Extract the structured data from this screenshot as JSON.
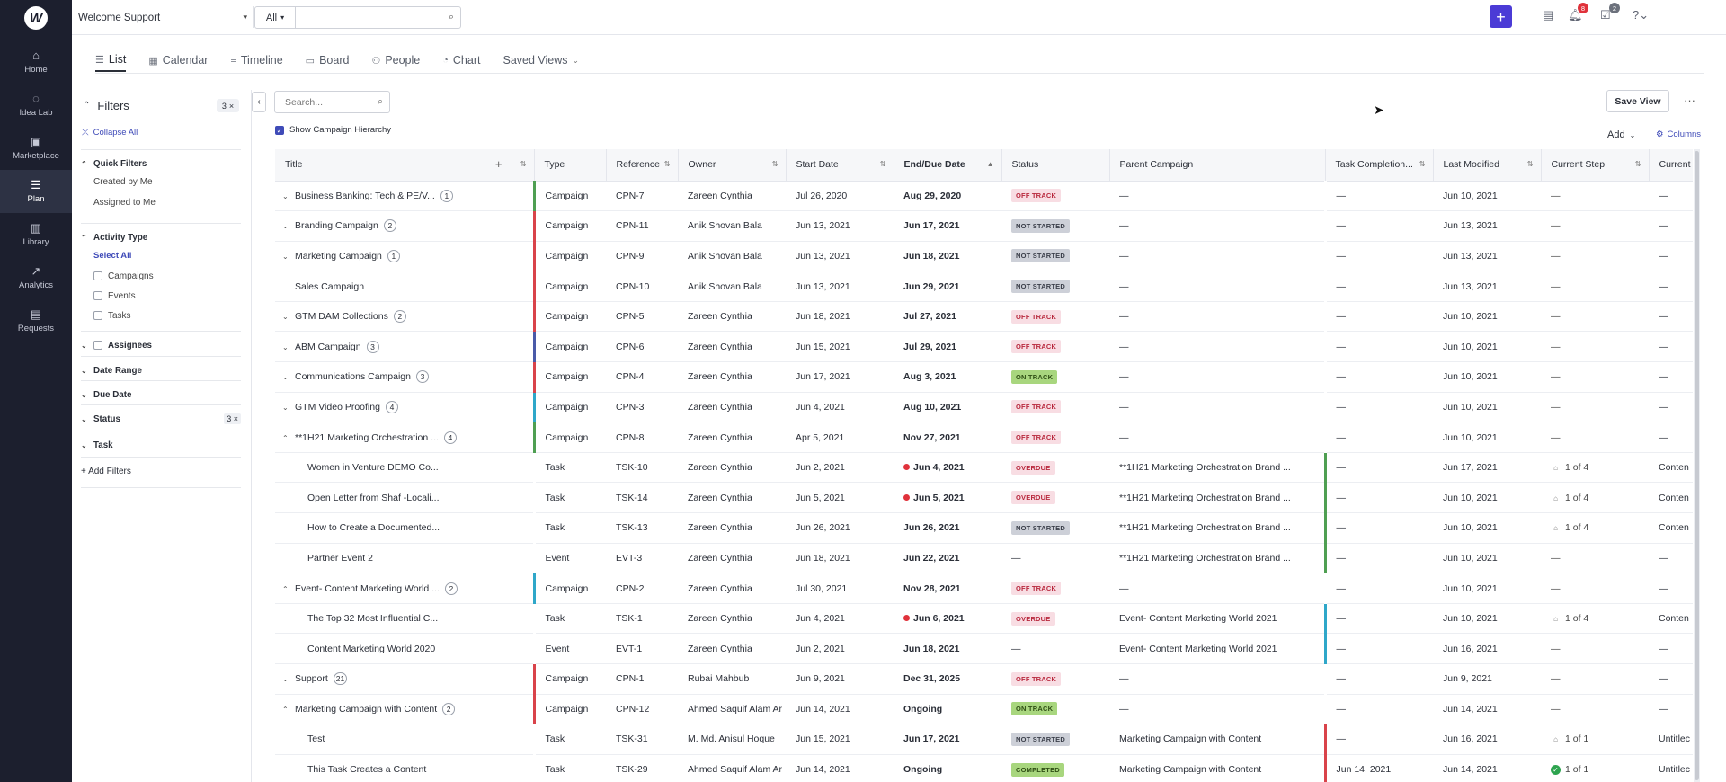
{
  "app": {
    "logo": "W"
  },
  "nav": [
    {
      "label": "Home",
      "icon": "⌂",
      "active": false
    },
    {
      "label": "Idea Lab",
      "icon": "◌",
      "active": false
    },
    {
      "label": "Marketplace",
      "icon": "▣",
      "active": false
    },
    {
      "label": "Plan",
      "icon": "☰",
      "active": true
    },
    {
      "label": "Library",
      "icon": "▥",
      "active": false
    },
    {
      "label": "Analytics",
      "icon": "↗",
      "active": false
    },
    {
      "label": "Requests",
      "icon": "▤",
      "active": false
    }
  ],
  "topbar": {
    "workspace": "Welcome Support",
    "search_scope": "All",
    "search_value": "",
    "notifications_count": "8",
    "tasks_count": "2"
  },
  "tabs": [
    {
      "label": "List",
      "icon": "☰",
      "active": true
    },
    {
      "label": "Calendar",
      "icon": "▦",
      "active": false
    },
    {
      "label": "Timeline",
      "icon": "≡",
      "active": false
    },
    {
      "label": "Board",
      "icon": "▭",
      "active": false
    },
    {
      "label": "People",
      "icon": "⚇",
      "active": false
    },
    {
      "label": "Chart",
      "icon": "◔",
      "active": false
    },
    {
      "label": "Saved Views",
      "icon": "",
      "active": false
    }
  ],
  "filters": {
    "title": "Filters",
    "count": "3",
    "collapse_all": "Collapse All",
    "quick_filters": {
      "title": "Quick Filters",
      "items": [
        "Created by Me",
        "Assigned to Me"
      ]
    },
    "activity_type": {
      "title": "Activity Type",
      "select_all": "Select All",
      "items": [
        "Campaigns",
        "Events",
        "Tasks"
      ]
    },
    "assignees": "Assignees",
    "date_range": "Date Range",
    "due_date": "Due Date",
    "status": {
      "title": "Status",
      "count": "3"
    },
    "task": "Task",
    "add_filters": "+ Add Filters"
  },
  "list": {
    "search_placeholder": "Search...",
    "show_hierarchy": "Show Campaign Hierarchy",
    "save_view": "Save View",
    "add": "Add",
    "columns": "Columns"
  },
  "colors": {
    "accent": "#4b3bd6",
    "off_track_bg": "#f8dde3",
    "not_started_bg": "#cdd0d8",
    "on_track_bg": "#a8d67e",
    "overdue_bg": "#f8dde3",
    "completed_bg": "#a8d67e"
  },
  "table": {
    "headers": [
      "Title",
      "Type",
      "Reference",
      "Owner",
      "Start Date",
      "End/Due Date",
      "Status",
      "Parent Campaign",
      "Task Completion...",
      "Last Modified",
      "Current Step",
      "Current"
    ],
    "rows": [
      {
        "caret": "⌄",
        "title": "Business Banking: Tech & PE/V...",
        "count": "1",
        "type": "Campaign",
        "bar": "#4f9f52",
        "ref": "CPN-7",
        "owner": "Zareen Cynthia",
        "start": "Jul 26, 2020",
        "due": "Aug 29, 2020",
        "due_overdue": false,
        "status": "OFF TRACK",
        "status_type": "off",
        "parent": "—",
        "pbar": "",
        "completion": "—",
        "modified": "Jun 10, 2021",
        "step": "—",
        "step_icon": "",
        "current": "—"
      },
      {
        "caret": "⌄",
        "title": "Branding Campaign",
        "count": "2",
        "type": "Campaign",
        "bar": "#d9434a",
        "ref": "CPN-11",
        "owner": "Anik Shovan Bala",
        "start": "Jun 13, 2021",
        "due": "Jun 17, 2021",
        "due_overdue": false,
        "status": "NOT STARTED",
        "status_type": "not",
        "parent": "—",
        "pbar": "",
        "completion": "—",
        "modified": "Jun 13, 2021",
        "step": "—",
        "step_icon": "",
        "current": "—"
      },
      {
        "caret": "⌄",
        "title": "Marketing Campaign",
        "count": "1",
        "type": "Campaign",
        "bar": "#d9434a",
        "ref": "CPN-9",
        "owner": "Anik Shovan Bala",
        "start": "Jun 13, 2021",
        "due": "Jun 18, 2021",
        "due_overdue": false,
        "status": "NOT STARTED",
        "status_type": "not",
        "parent": "—",
        "pbar": "",
        "completion": "—",
        "modified": "Jun 13, 2021",
        "step": "—",
        "step_icon": "",
        "current": "—"
      },
      {
        "caret": "",
        "title": "Sales Campaign",
        "count": "",
        "type": "Campaign",
        "bar": "#d9434a",
        "ref": "CPN-10",
        "owner": "Anik Shovan Bala",
        "start": "Jun 13, 2021",
        "due": "Jun 29, 2021",
        "due_overdue": false,
        "status": "NOT STARTED",
        "status_type": "not",
        "parent": "—",
        "pbar": "",
        "completion": "—",
        "modified": "Jun 13, 2021",
        "step": "—",
        "step_icon": "",
        "current": "—"
      },
      {
        "caret": "⌄",
        "title": "GTM DAM Collections",
        "count": "2",
        "type": "Campaign",
        "bar": "#d9434a",
        "ref": "CPN-5",
        "owner": "Zareen Cynthia",
        "start": "Jun 18, 2021",
        "due": "Jul 27, 2021",
        "due_overdue": false,
        "status": "OFF TRACK",
        "status_type": "off",
        "parent": "—",
        "pbar": "",
        "completion": "—",
        "modified": "Jun 10, 2021",
        "step": "—",
        "step_icon": "",
        "current": "—"
      },
      {
        "caret": "⌄",
        "title": "ABM Campaign",
        "count": "3",
        "type": "Campaign",
        "bar": "#4a5aa8",
        "ref": "CPN-6",
        "owner": "Zareen Cynthia",
        "start": "Jun 15, 2021",
        "due": "Jul 29, 2021",
        "due_overdue": false,
        "status": "OFF TRACK",
        "status_type": "off",
        "parent": "—",
        "pbar": "",
        "completion": "—",
        "modified": "Jun 10, 2021",
        "step": "—",
        "step_icon": "",
        "current": "—"
      },
      {
        "caret": "⌄",
        "title": "Communications Campaign",
        "count": "3",
        "type": "Campaign",
        "bar": "#d9434a",
        "ref": "CPN-4",
        "owner": "Zareen Cynthia",
        "start": "Jun 17, 2021",
        "due": "Aug 3, 2021",
        "due_overdue": false,
        "status": "ON TRACK",
        "status_type": "on",
        "parent": "—",
        "pbar": "",
        "completion": "—",
        "modified": "Jun 10, 2021",
        "step": "—",
        "step_icon": "",
        "current": "—"
      },
      {
        "caret": "⌄",
        "title": "GTM Video Proofing",
        "count": "4",
        "type": "Campaign",
        "bar": "#2fa7c9",
        "ref": "CPN-3",
        "owner": "Zareen Cynthia",
        "start": "Jun 4, 2021",
        "due": "Aug 10, 2021",
        "due_overdue": false,
        "status": "OFF TRACK",
        "status_type": "off",
        "parent": "—",
        "pbar": "",
        "completion": "—",
        "modified": "Jun 10, 2021",
        "step": "—",
        "step_icon": "",
        "current": "—"
      },
      {
        "caret": "⌃",
        "title": "**1H21 Marketing Orchestration ...",
        "count": "4",
        "type": "Campaign",
        "bar": "#4f9f52",
        "ref": "CPN-8",
        "owner": "Zareen Cynthia",
        "start": "Apr 5, 2021",
        "due": "Nov 27, 2021",
        "due_overdue": false,
        "status": "OFF TRACK",
        "status_type": "off",
        "parent": "—",
        "pbar": "",
        "completion": "—",
        "modified": "Jun 10, 2021",
        "step": "—",
        "step_icon": "",
        "current": "—"
      },
      {
        "caret": "sub",
        "title": "Women in Venture DEMO Co...",
        "count": "",
        "type": "Task",
        "bar": "",
        "ref": "TSK-10",
        "owner": "Zareen Cynthia",
        "start": "Jun 2, 2021",
        "due": "Jun 4, 2021",
        "due_overdue": true,
        "status": "OVERDUE",
        "status_type": "overdue",
        "parent": "**1H21 Marketing Orchestration Brand ...",
        "pbar": "#4f9f52",
        "completion": "—",
        "modified": "Jun 17, 2021",
        "step": "1 of 4",
        "step_icon": "person",
        "current": "Conten"
      },
      {
        "caret": "sub",
        "title": "Open Letter from Shaf -Locali...",
        "count": "",
        "type": "Task",
        "bar": "",
        "ref": "TSK-14",
        "owner": "Zareen Cynthia",
        "start": "Jun 5, 2021",
        "due": "Jun 5, 2021",
        "due_overdue": true,
        "status": "OVERDUE",
        "status_type": "overdue",
        "parent": "**1H21 Marketing Orchestration Brand ...",
        "pbar": "#4f9f52",
        "completion": "—",
        "modified": "Jun 10, 2021",
        "step": "1 of 4",
        "step_icon": "person",
        "current": "Conten"
      },
      {
        "caret": "sub",
        "title": "How to Create a Documented...",
        "count": "",
        "type": "Task",
        "bar": "",
        "ref": "TSK-13",
        "owner": "Zareen Cynthia",
        "start": "Jun 26, 2021",
        "due": "Jun 26, 2021",
        "due_overdue": false,
        "status": "NOT STARTED",
        "status_type": "not",
        "parent": "**1H21 Marketing Orchestration Brand ...",
        "pbar": "#4f9f52",
        "completion": "—",
        "modified": "Jun 10, 2021",
        "step": "1 of 4",
        "step_icon": "person",
        "current": "Conten"
      },
      {
        "caret": "sub",
        "title": "Partner Event 2",
        "count": "",
        "type": "Event",
        "bar": "",
        "ref": "EVT-3",
        "owner": "Zareen Cynthia",
        "start": "Jun 18, 2021",
        "due": "Jun 22, 2021",
        "due_overdue": false,
        "status": "—",
        "status_type": "none",
        "parent": "**1H21 Marketing Orchestration Brand ...",
        "pbar": "#4f9f52",
        "completion": "—",
        "modified": "Jun 10, 2021",
        "step": "—",
        "step_icon": "",
        "current": "—"
      },
      {
        "caret": "⌃",
        "title": "Event- Content Marketing World ...",
        "count": "2",
        "type": "Campaign",
        "bar": "#2fa7c9",
        "ref": "CPN-2",
        "owner": "Zareen Cynthia",
        "start": "Jul 30, 2021",
        "due": "Nov 28, 2021",
        "due_overdue": false,
        "status": "OFF TRACK",
        "status_type": "off",
        "parent": "—",
        "pbar": "",
        "completion": "—",
        "modified": "Jun 10, 2021",
        "step": "—",
        "step_icon": "",
        "current": "—"
      },
      {
        "caret": "sub",
        "title": "The Top 32 Most Influential C...",
        "count": "",
        "type": "Task",
        "bar": "",
        "ref": "TSK-1",
        "owner": "Zareen Cynthia",
        "start": "Jun 4, 2021",
        "due": "Jun 6, 2021",
        "due_overdue": true,
        "status": "OVERDUE",
        "status_type": "overdue",
        "parent": "Event- Content Marketing World 2021",
        "pbar": "#2fa7c9",
        "completion": "—",
        "modified": "Jun 10, 2021",
        "step": "1 of 4",
        "step_icon": "person",
        "current": "Conten"
      },
      {
        "caret": "sub",
        "title": "Content Marketing World 2020",
        "count": "",
        "type": "Event",
        "bar": "",
        "ref": "EVT-1",
        "owner": "Zareen Cynthia",
        "start": "Jun 2, 2021",
        "due": "Jun 18, 2021",
        "due_overdue": false,
        "status": "—",
        "status_type": "none",
        "parent": "Event- Content Marketing World 2021",
        "pbar": "#2fa7c9",
        "completion": "—",
        "modified": "Jun 16, 2021",
        "step": "—",
        "step_icon": "",
        "current": "—"
      },
      {
        "caret": "⌄",
        "title": "Support",
        "count": "21",
        "type": "Campaign",
        "bar": "#d9434a",
        "ref": "CPN-1",
        "owner": "Rubai Mahbub",
        "start": "Jun 9, 2021",
        "due": "Dec 31, 2025",
        "due_overdue": false,
        "status": "OFF TRACK",
        "status_type": "off",
        "parent": "—",
        "pbar": "",
        "completion": "—",
        "modified": "Jun 9, 2021",
        "step": "—",
        "step_icon": "",
        "current": "—"
      },
      {
        "caret": "⌃",
        "title": "Marketing Campaign with Content",
        "count": "2",
        "type": "Campaign",
        "bar": "#d9434a",
        "ref": "CPN-12",
        "owner": "Ahmed Saquif Alam Ar",
        "start": "Jun 14, 2021",
        "due": "Ongoing",
        "due_overdue": false,
        "status": "ON TRACK",
        "status_type": "on",
        "parent": "—",
        "pbar": "",
        "completion": "—",
        "modified": "Jun 14, 2021",
        "step": "—",
        "step_icon": "",
        "current": "—"
      },
      {
        "caret": "sub",
        "title": "Test",
        "count": "",
        "type": "Task",
        "bar": "",
        "ref": "TSK-31",
        "owner": "M. Md. Anisul Hoque",
        "start": "Jun 15, 2021",
        "due": "Jun 17, 2021",
        "due_overdue": false,
        "status": "NOT STARTED",
        "status_type": "not",
        "parent": "Marketing Campaign with Content",
        "pbar": "#d9434a",
        "completion": "—",
        "modified": "Jun 16, 2021",
        "step": "1 of 1",
        "step_icon": "person",
        "current": "Untitlec"
      },
      {
        "caret": "sub",
        "title": "This Task Creates a Content",
        "count": "",
        "type": "Task",
        "bar": "",
        "ref": "TSK-29",
        "owner": "Ahmed Saquif Alam Ar",
        "start": "Jun 14, 2021",
        "due": "Ongoing",
        "due_overdue": false,
        "status": "COMPLETED",
        "status_type": "completed",
        "parent": "Marketing Campaign with Content",
        "pbar": "#d9434a",
        "completion": "Jun 14, 2021",
        "modified": "Jun 14, 2021",
        "step": "1 of 1",
        "step_icon": "check",
        "current": "Untitlec"
      }
    ]
  }
}
